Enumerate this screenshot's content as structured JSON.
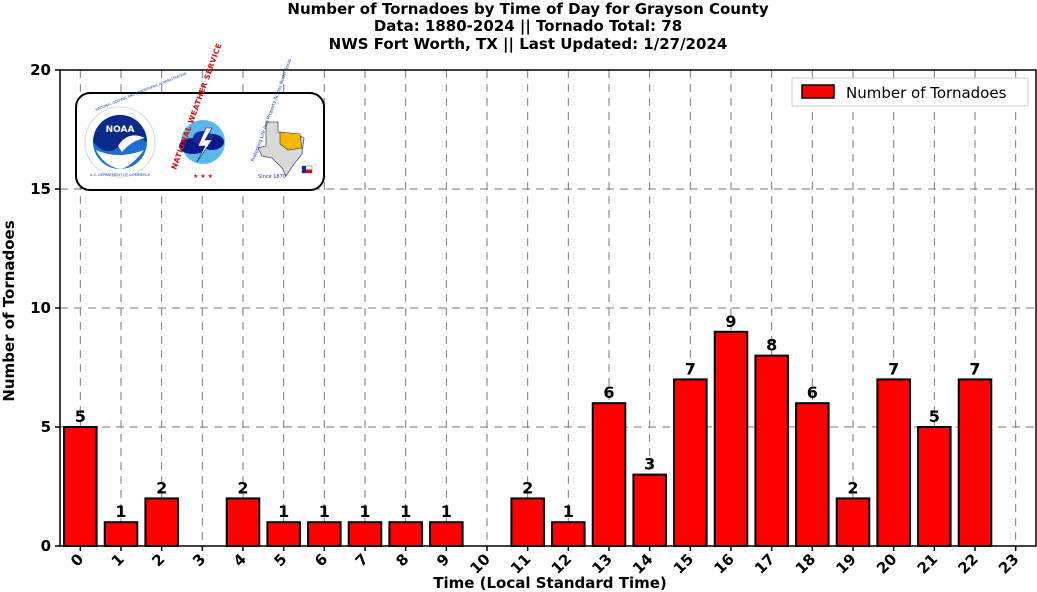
{
  "chart_data": {
    "type": "bar",
    "title_lines": [
      "Number of Tornadoes by Time of Day for Grayson County",
      "Data: 1880-2024 || Tornado Total: 78",
      "NWS Fort Worth, TX || Last Updated: 1/27/2024"
    ],
    "xlabel": "Time (Local Standard Time)",
    "ylabel": "Number of Tornadoes",
    "categories": [
      "0",
      "1",
      "2",
      "3",
      "4",
      "5",
      "6",
      "7",
      "8",
      "9",
      "10",
      "11",
      "12",
      "13",
      "14",
      "15",
      "16",
      "17",
      "18",
      "19",
      "20",
      "21",
      "22",
      "23"
    ],
    "series": [
      {
        "name": "Number of Tornadoes",
        "values": [
          5,
          1,
          2,
          0,
          2,
          1,
          1,
          1,
          1,
          1,
          0,
          2,
          1,
          6,
          3,
          7,
          9,
          8,
          6,
          2,
          7,
          5,
          7,
          0
        ],
        "color": "#ff0000"
      }
    ],
    "ylim": [
      0,
      20
    ],
    "yticks": [
      0,
      5,
      10,
      15,
      20
    ],
    "grid": true,
    "legend_position": "top-right",
    "logos": {
      "noaa_text": "NOAA",
      "noaa_ring_text": "NATIONAL OCEANIC AND ATMOSPHERIC ADMINISTRATION",
      "noaa_bottom_text": "U.S. DEPARTMENT OF COMMERCE",
      "nws_text": "NATIONAL WEATHER SERVICE",
      "texas_text": "Protecting Life And Property Across North Texas",
      "texas_since": "Since 1870"
    }
  }
}
